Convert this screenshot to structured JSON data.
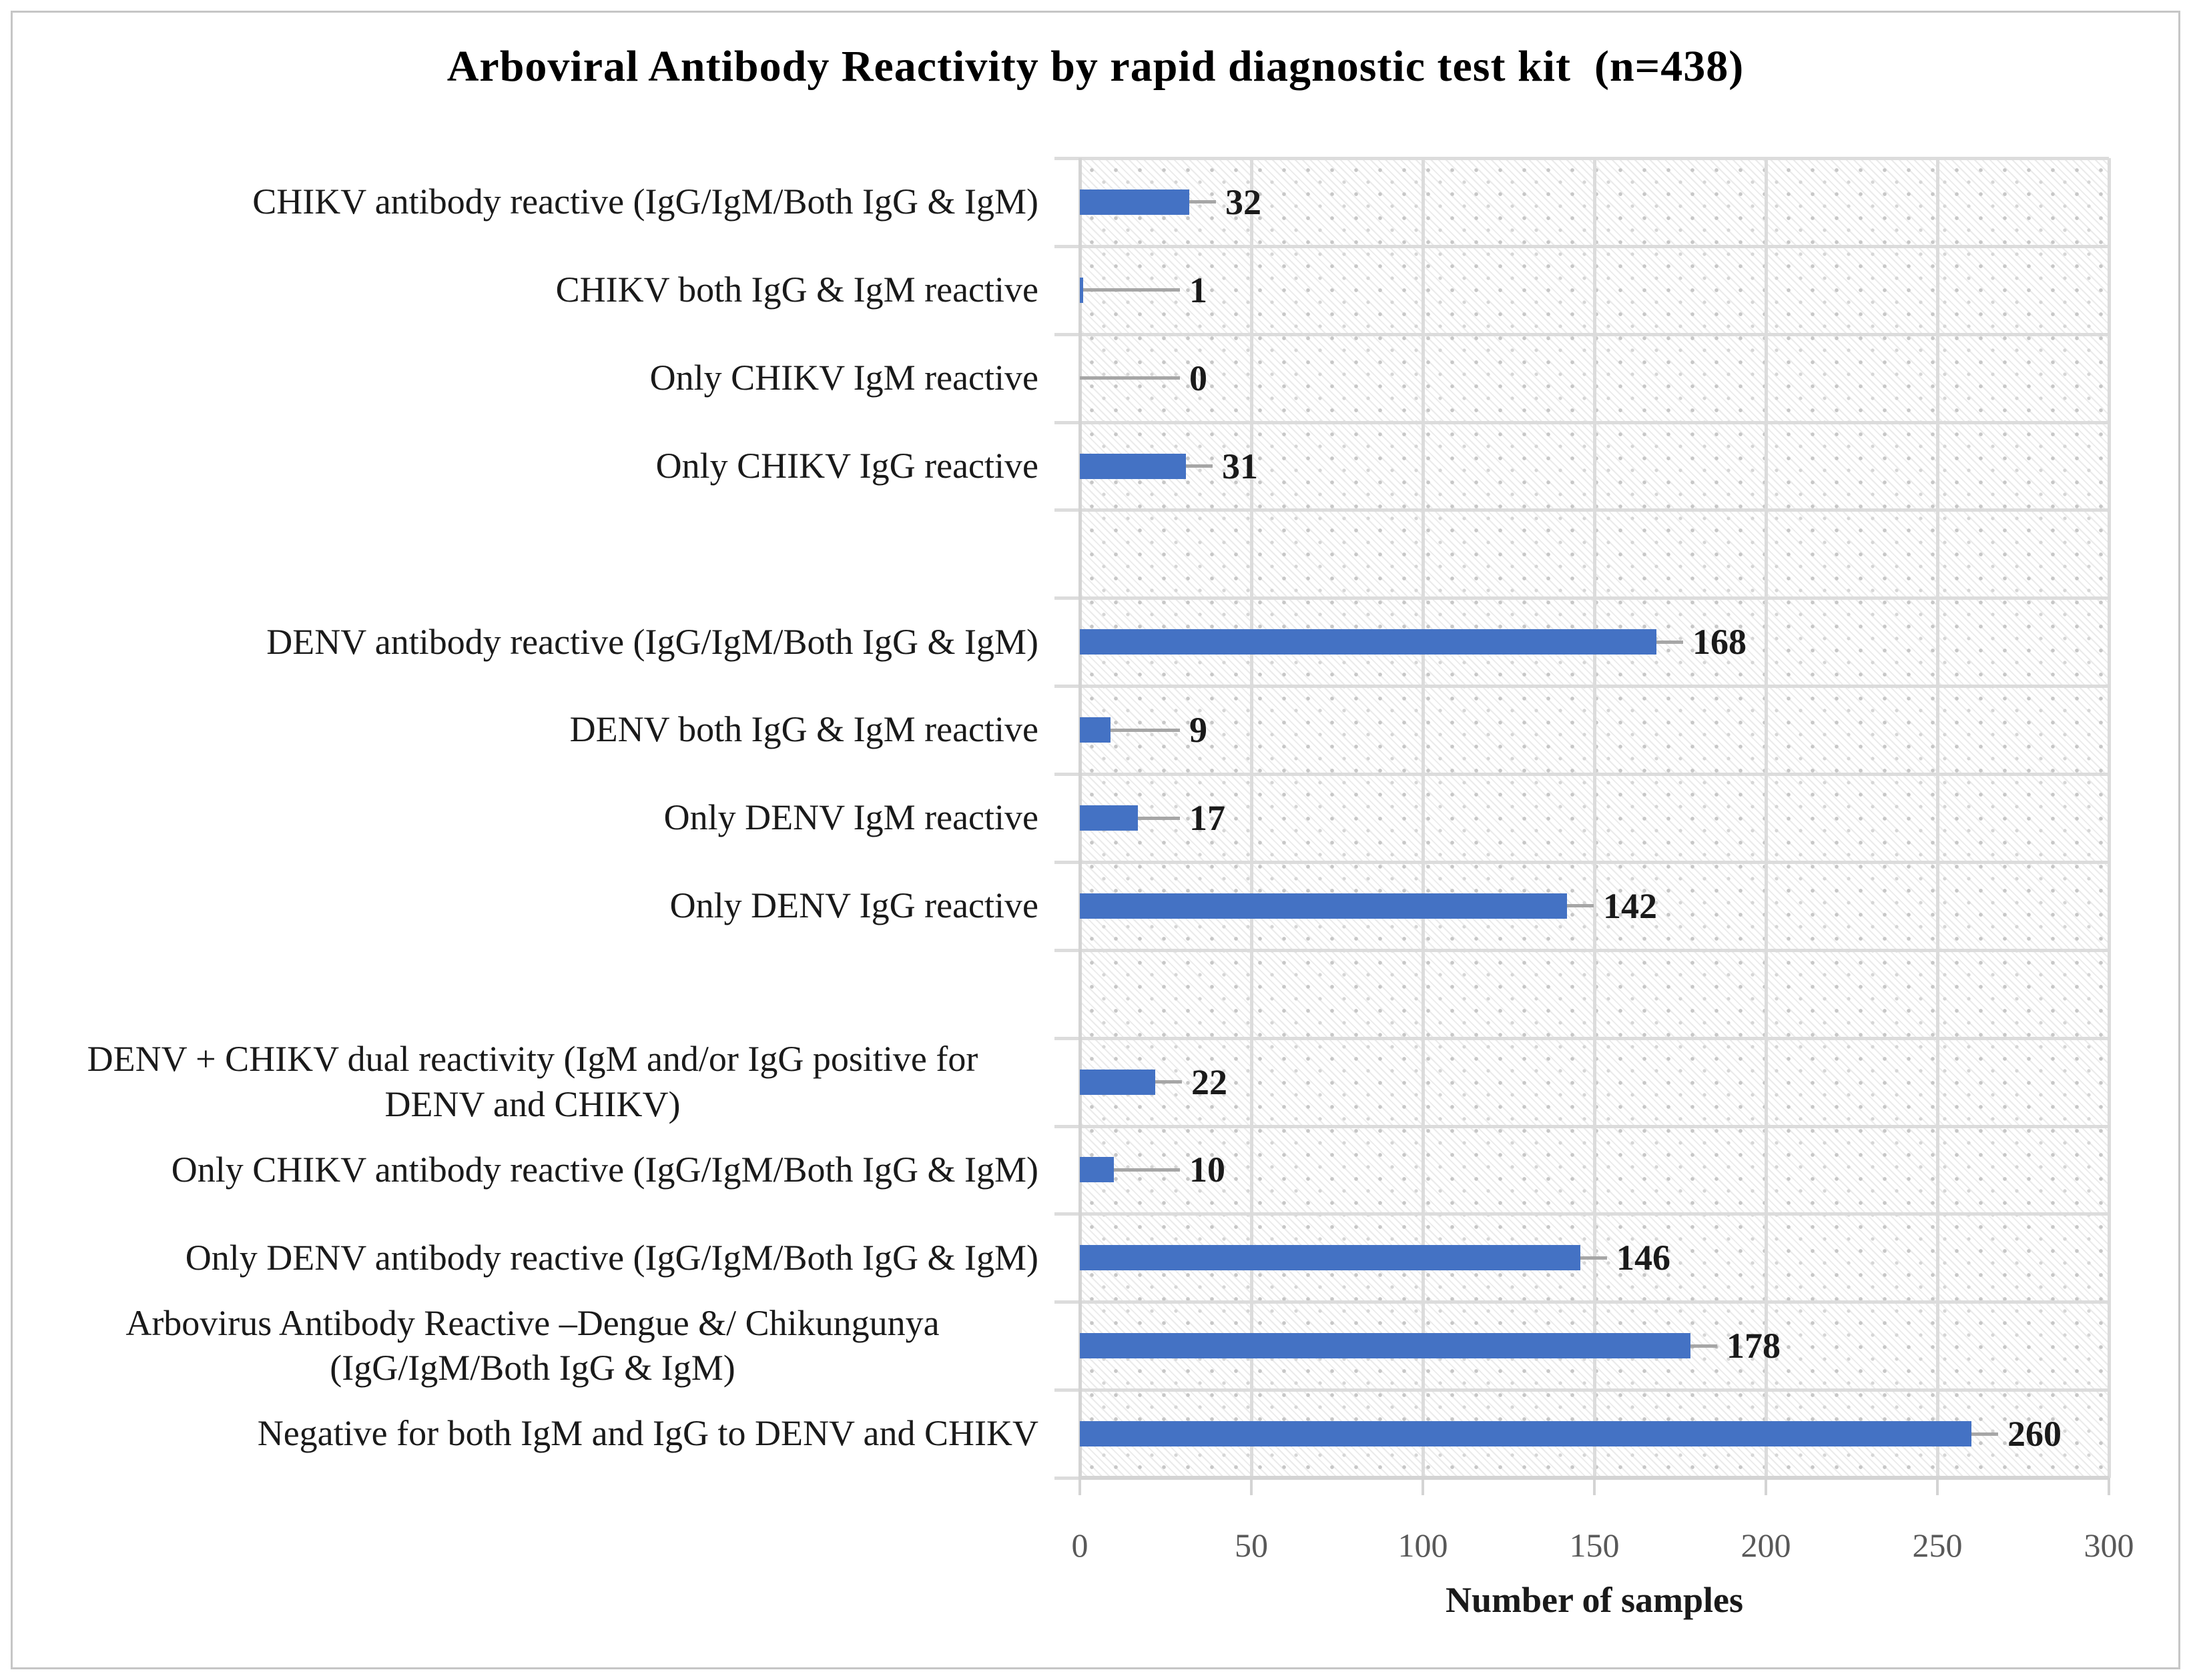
{
  "title": "Arboviral Antibody Reactivity by rapid diagnostic test kit  (n=438)",
  "chart_data": {
    "type": "bar",
    "orientation": "horizontal",
    "title": "Arboviral Antibody Reactivity by rapid diagnostic test kit  (n=438)",
    "xlabel": "Number of samples",
    "ylabel": "",
    "xlim": [
      0,
      300
    ],
    "xticks": [
      0,
      50,
      100,
      150,
      200,
      250,
      300
    ],
    "grid": true,
    "legend": false,
    "bar_color": "#4472C4",
    "categories": [
      "CHIKV antibody reactive (IgG/IgM/Both IgG & IgM)",
      "CHIKV both IgG & IgM reactive",
      "Only CHIKV IgM reactive",
      "Only CHIKV IgG reactive",
      "DENV antibody reactive (IgG/IgM/Both IgG & IgM)",
      "DENV both IgG & IgM reactive",
      "Only DENV IgM reactive",
      "Only DENV IgG reactive",
      "DENV + CHIKV dual reactivity (IgM and/or IgG positive for DENV and CHIKV)",
      "Only CHIKV antibody reactive (IgG/IgM/Both IgG & IgM)",
      "Only DENV antibody reactive (IgG/IgM/Both IgG & IgM)",
      "Arbovirus Antibody Reactive –Dengue &/ Chikungunya (IgG/IgM/Both IgG & IgM)",
      "Negative for both IgM and IgG to DENV and CHIKV"
    ],
    "values": [
      32,
      1,
      0,
      31,
      168,
      9,
      17,
      142,
      22,
      10,
      146,
      178,
      260
    ],
    "rows": [
      {
        "label": "CHIKV antibody reactive (IgG/IgM/Both IgG & IgM)",
        "value": 32,
        "align": "right"
      },
      {
        "label": "CHIKV both IgG & IgM reactive",
        "value": 1,
        "align": "right"
      },
      {
        "label": "Only CHIKV IgM reactive",
        "value": 0,
        "align": "right"
      },
      {
        "label": "Only CHIKV IgG reactive",
        "value": 31,
        "align": "right"
      },
      {
        "label": "",
        "value": null,
        "align": "right"
      },
      {
        "label": "DENV antibody reactive (IgG/IgM/Both IgG & IgM)",
        "value": 168,
        "align": "right"
      },
      {
        "label": "DENV both IgG & IgM reactive",
        "value": 9,
        "align": "right"
      },
      {
        "label": "Only DENV IgM reactive",
        "value": 17,
        "align": "right"
      },
      {
        "label": "Only DENV IgG reactive",
        "value": 142,
        "align": "right"
      },
      {
        "label": "",
        "value": null,
        "align": "right"
      },
      {
        "label": "DENV + CHIKV dual reactivity (IgM and/or IgG positive for\nDENV and CHIKV)",
        "value": 22,
        "align": "center"
      },
      {
        "label": "Only CHIKV antibody reactive (IgG/IgM/Both IgG & IgM)",
        "value": 10,
        "align": "right"
      },
      {
        "label": "Only DENV antibody reactive (IgG/IgM/Both IgG & IgM)",
        "value": 146,
        "align": "right"
      },
      {
        "label": "Arbovirus Antibody Reactive –Dengue &/ Chikungunya\n(IgG/IgM/Both IgG & IgM)",
        "value": 178,
        "align": "center"
      },
      {
        "label": "Negative for both IgM and IgG to DENV and CHIKV",
        "value": 260,
        "align": "right"
      }
    ]
  },
  "colors": {
    "bar": "#4472C4",
    "gridline": "#dcdcdc",
    "axis_line": "#d4d4d4",
    "leader_line": "#a6a6a6",
    "tick_label": "#595959",
    "label_text": "#1a1a1a",
    "figure_border": "#c6c6c6"
  }
}
